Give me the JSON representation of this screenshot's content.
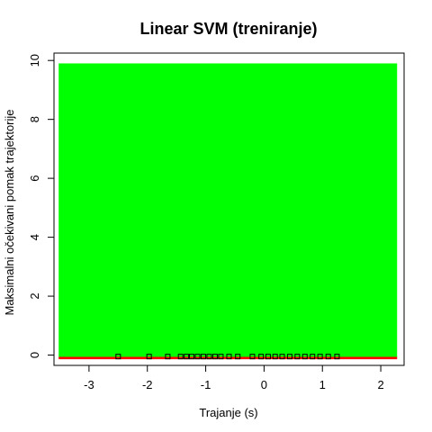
{
  "chart_data": {
    "type": "scatter",
    "title": "Linear SVM (treniranje)",
    "xlabel": "Trajanje (s)",
    "ylabel": "Maksimalni očekivani pomak trajektorije",
    "xlim": [
      -3.6,
      2.4
    ],
    "ylim": [
      -0.35,
      10.25
    ],
    "x_ticks": [
      -3,
      -2,
      -1,
      0,
      1,
      2
    ],
    "y_ticks": [
      0,
      2,
      4,
      6,
      8,
      10
    ],
    "grid": false,
    "legend": "none",
    "regions": [
      {
        "name": "",
        "x_range": [
          -3.52,
          2.28
        ],
        "y_range": [
          -0.1,
          9.9
        ],
        "color": "#00ff00"
      },
      {
        "name": "",
        "x_range": [
          -3.52,
          2.28
        ],
        "y_range": [
          -0.14,
          -0.06
        ],
        "color": "#ff0000"
      }
    ],
    "points": [
      {
        "x": -2.5,
        "y": -0.05
      },
      {
        "x": -1.97,
        "y": -0.05
      },
      {
        "x": -1.65,
        "y": -0.05
      },
      {
        "x": -1.43,
        "y": -0.05
      },
      {
        "x": -1.33,
        "y": -0.05
      },
      {
        "x": -1.24,
        "y": -0.05
      },
      {
        "x": -1.14,
        "y": -0.05
      },
      {
        "x": -1.04,
        "y": -0.05
      },
      {
        "x": -0.94,
        "y": -0.05
      },
      {
        "x": -0.84,
        "y": -0.05
      },
      {
        "x": -0.74,
        "y": -0.05
      },
      {
        "x": -0.6,
        "y": -0.05
      },
      {
        "x": -0.45,
        "y": -0.05
      },
      {
        "x": -0.2,
        "y": -0.05
      },
      {
        "x": -0.05,
        "y": -0.05
      },
      {
        "x": 0.07,
        "y": -0.05
      },
      {
        "x": 0.19,
        "y": -0.05
      },
      {
        "x": 0.31,
        "y": -0.05
      },
      {
        "x": 0.44,
        "y": -0.05
      },
      {
        "x": 0.57,
        "y": -0.05
      },
      {
        "x": 0.7,
        "y": -0.05
      },
      {
        "x": 0.83,
        "y": -0.05
      },
      {
        "x": 0.96,
        "y": -0.05
      },
      {
        "x": 1.1,
        "y": -0.05
      },
      {
        "x": 1.25,
        "y": -0.05
      }
    ]
  }
}
